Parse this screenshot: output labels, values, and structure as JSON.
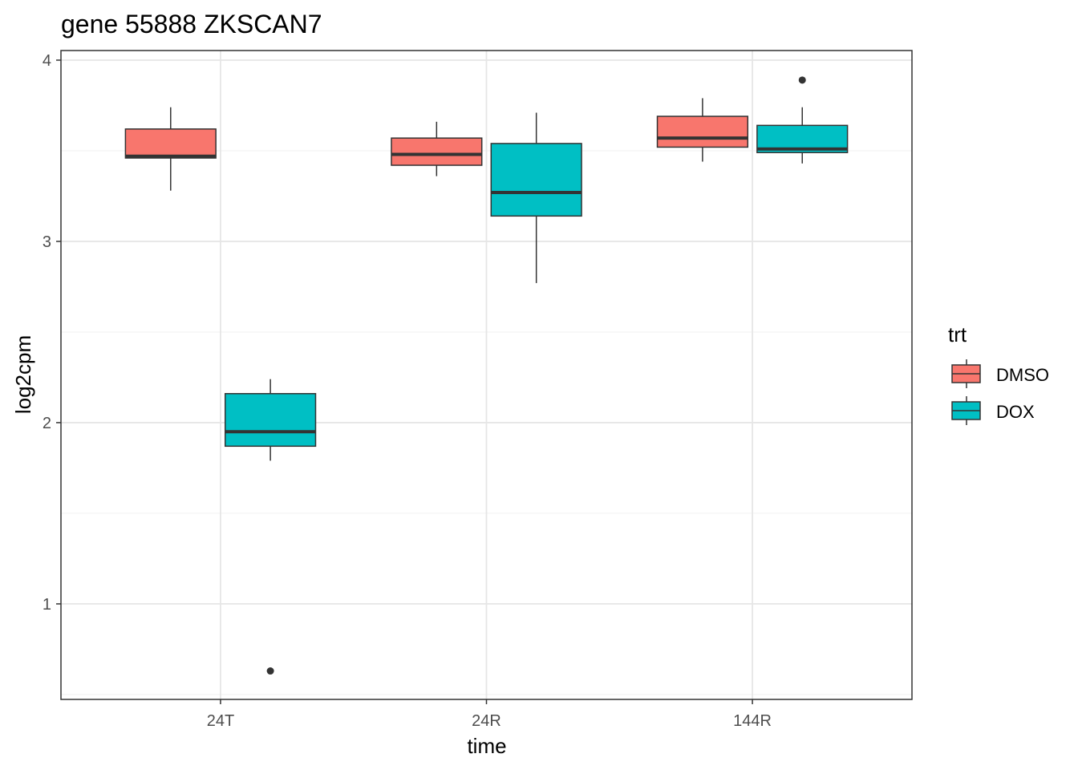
{
  "chart_data": {
    "type": "boxplot",
    "title": "gene 55888 ZKSCAN7",
    "xlabel": "time",
    "ylabel": "log2cpm",
    "categories": [
      "24T",
      "24R",
      "144R"
    ],
    "ylim": [
      0.47,
      4.05
    ],
    "yticks": [
      1,
      2,
      3,
      4
    ],
    "ytick_labels": [
      "1",
      "2",
      "3",
      "4"
    ],
    "grid": true,
    "legend": {
      "title": "trt",
      "position": "right",
      "entries": [
        "DMSO",
        "DOX"
      ]
    },
    "colors": {
      "DMSO": "#F8766D",
      "DOX": "#00BFC4"
    },
    "series": [
      {
        "name": "DMSO",
        "boxes": [
          {
            "category": "24T",
            "whisker_low": 3.28,
            "q1": 3.46,
            "median": 3.47,
            "q3": 3.62,
            "whisker_high": 3.74,
            "outliers": []
          },
          {
            "category": "24R",
            "whisker_low": 3.36,
            "q1": 3.42,
            "median": 3.48,
            "q3": 3.57,
            "whisker_high": 3.66,
            "outliers": []
          },
          {
            "category": "144R",
            "whisker_low": 3.44,
            "q1": 3.52,
            "median": 3.57,
            "q3": 3.69,
            "whisker_high": 3.79,
            "outliers": []
          }
        ]
      },
      {
        "name": "DOX",
        "boxes": [
          {
            "category": "24T",
            "whisker_low": 1.79,
            "q1": 1.87,
            "median": 1.95,
            "q3": 2.16,
            "whisker_high": 2.24,
            "outliers": [
              0.63
            ]
          },
          {
            "category": "24R",
            "whisker_low": 2.77,
            "q1": 3.14,
            "median": 3.27,
            "q3": 3.54,
            "whisker_high": 3.71,
            "outliers": []
          },
          {
            "category": "144R",
            "whisker_low": 3.43,
            "q1": 3.49,
            "median": 3.51,
            "q3": 3.64,
            "whisker_high": 3.74,
            "outliers": [
              3.89
            ]
          }
        ]
      }
    ]
  }
}
